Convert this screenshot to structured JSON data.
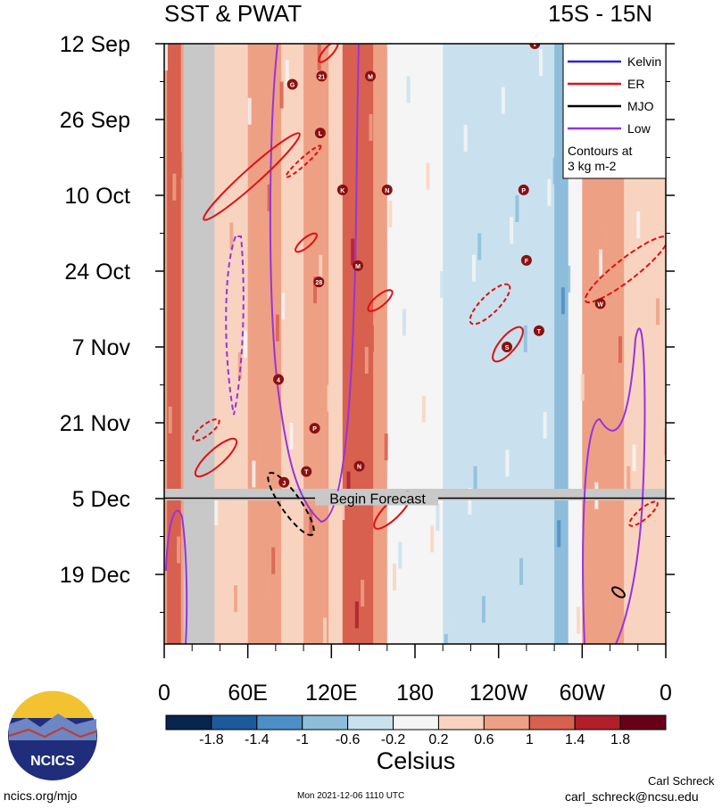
{
  "header": {
    "title_left": "SST & PWAT",
    "title_right": "15S - 15N"
  },
  "colors": {
    "land_gray": "#c8c8c8",
    "kelvin": "#2727d0",
    "er": "#e01010",
    "mjo": "#000000",
    "low": "#9933dd",
    "storm_marker": "#8a1010"
  },
  "chart_data": {
    "type": "heatmap",
    "title": "SST & PWAT",
    "subtitle": "15S - 15N",
    "x_tick_labels": [
      "0",
      "60E",
      "120E",
      "180",
      "120W",
      "60W",
      "0"
    ],
    "x_ticks_deg": [
      0,
      60,
      120,
      180,
      240,
      300,
      360
    ],
    "y_tick_labels": [
      "12 Sep",
      "26 Sep",
      "10 Oct",
      "24 Oct",
      "7 Nov",
      "21 Nov",
      "5 Dec",
      "19 Dec"
    ],
    "y_ticks_day": [
      0,
      14,
      28,
      42,
      56,
      70,
      84,
      98
    ],
    "x_range_deg": [
      0,
      360
    ],
    "y_range_day": [
      0,
      110
    ],
    "forecast_start_day": 84,
    "forecast_label": "Begin Forecast",
    "colorbar": {
      "label": "Celsius",
      "tick_labels": [
        "-1.8",
        "-1.4",
        "-1",
        "-0.6",
        "-0.2",
        "0.2",
        "0.6",
        "1",
        "1.4",
        "1.8"
      ],
      "colors": [
        "#08254d",
        "#1c5a9b",
        "#4b8fc6",
        "#8dbddb",
        "#c9e1ee",
        "#f5f5f5",
        "#f8d3c0",
        "#eea085",
        "#d7604f",
        "#b01f2b",
        "#68001a"
      ]
    },
    "legend": {
      "entries": [
        {
          "name": "Kelvin",
          "color": "#2727d0"
        },
        {
          "name": "ER",
          "color": "#e01010"
        },
        {
          "name": "MJO",
          "color": "#000000"
        },
        {
          "name": "Low",
          "color": "#9933dd"
        }
      ],
      "note": "Contours at\n3 kg m-2",
      "placement": "top-right"
    },
    "sst_bands": [
      {
        "lon": [
          0,
          2
        ],
        "value": 0.6
      },
      {
        "lon": [
          2,
          12
        ],
        "value": 1.2
      },
      {
        "lon": [
          12,
          14
        ],
        "value": 0.8
      },
      {
        "lon": [
          14,
          36
        ],
        "value": null
      },
      {
        "lon": [
          36,
          44
        ],
        "value": 0.2
      },
      {
        "lon": [
          44,
          60
        ],
        "value": 0.4
      },
      {
        "lon": [
          60,
          84
        ],
        "value": 0.6
      },
      {
        "lon": [
          84,
          100
        ],
        "value": 0.4
      },
      {
        "lon": [
          100,
          118
        ],
        "value": 0.8
      },
      {
        "lon": [
          118,
          128
        ],
        "value": 0.5
      },
      {
        "lon": [
          128,
          150
        ],
        "value": 1.0
      },
      {
        "lon": [
          150,
          160
        ],
        "value": 0.6
      },
      {
        "lon": [
          160,
          180
        ],
        "value": 0.1
      },
      {
        "lon": [
          180,
          200
        ],
        "value": -0.1
      },
      {
        "lon": [
          200,
          222
        ],
        "value": -0.3
      },
      {
        "lon": [
          222,
          252
        ],
        "value": -0.6
      },
      {
        "lon": [
          252,
          280
        ],
        "value": -0.3
      },
      {
        "lon": [
          280,
          290
        ],
        "value": -0.9
      },
      {
        "lon": [
          290,
          300
        ],
        "value": -0.2
      },
      {
        "lon": [
          300,
          316
        ],
        "value": 0.6
      },
      {
        "lon": [
          316,
          330
        ],
        "value": 0.8
      },
      {
        "lon": [
          330,
          348
        ],
        "value": 0.4
      },
      {
        "lon": [
          348,
          360
        ],
        "value": 0.3
      }
    ],
    "storms": [
      {
        "label": "V",
        "lon": 266,
        "day": 0
      },
      {
        "label": "21",
        "lon": 113,
        "day": 6
      },
      {
        "label": "M",
        "lon": 148,
        "day": 6
      },
      {
        "label": "G",
        "lon": 92,
        "day": 7.5
      },
      {
        "label": "L",
        "lon": 112,
        "day": 16.5
      },
      {
        "label": "K",
        "lon": 128,
        "day": 27
      },
      {
        "label": "N",
        "lon": 160,
        "day": 27
      },
      {
        "label": "P",
        "lon": 258,
        "day": 27
      },
      {
        "label": "M",
        "lon": 139,
        "day": 41
      },
      {
        "label": "28",
        "lon": 111,
        "day": 44
      },
      {
        "label": "F",
        "lon": 260,
        "day": 40
      },
      {
        "label": "W",
        "lon": 313,
        "day": 48
      },
      {
        "label": "T",
        "lon": 269,
        "day": 53
      },
      {
        "label": "S",
        "lon": 246,
        "day": 56
      },
      {
        "label": "4",
        "lon": 82,
        "day": 62
      },
      {
        "label": "P",
        "lon": 108,
        "day": 71
      },
      {
        "label": "N",
        "lon": 140,
        "day": 78
      },
      {
        "label": "T",
        "lon": 102,
        "day": 79
      },
      {
        "label": "J",
        "lon": 86,
        "day": 81
      }
    ]
  },
  "footer": {
    "logo_text": "NCICS",
    "left": "ncics.org/mjo",
    "center": "Mon 2021-12-06 1110 UTC",
    "right_name": "Carl Schreck",
    "right_email": "carl_schreck@ncsu.edu"
  }
}
